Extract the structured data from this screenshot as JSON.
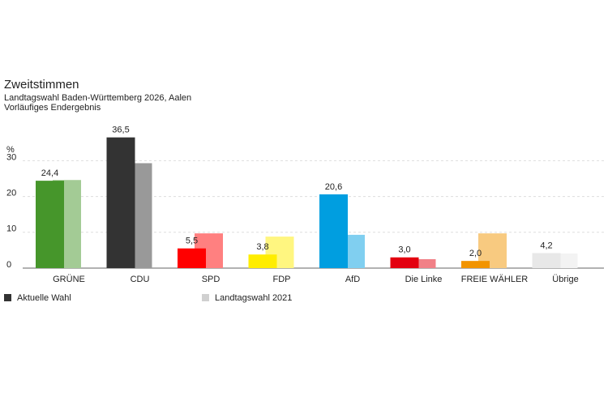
{
  "chart_data": {
    "type": "bar",
    "title": "Zweitstimmen",
    "subtitle": [
      "Landtagswahl Baden-Württemberg 2026, Aalen",
      "Vorläufiges Endergebnis"
    ],
    "y_label": "%",
    "categories": [
      "GRÜNE",
      "CDU",
      "SPD",
      "FDP",
      "AfD",
      "Die Linke",
      "FREIE WÄHLER",
      "Übrige"
    ],
    "series": [
      {
        "name": "Aktuelle Wahl",
        "color": "#333333",
        "colors": [
          "#46962b",
          "#333333",
          "#ff0000",
          "#ffed00",
          "#009ee0",
          "#e3000f",
          "#f29400",
          "#e8e8e8"
        ],
        "values": [
          24.4,
          36.5,
          5.5,
          3.8,
          20.6,
          3.0,
          2.0,
          4.2
        ],
        "value_labels": [
          "24,4",
          "36,5",
          "5,5",
          "3,8",
          "20,6",
          "3,0",
          "2,0",
          "4,2"
        ]
      },
      {
        "name": "Landtagswahl 2021",
        "color": "#d0d0d0",
        "colors": [
          "#a3cb95",
          "#999999",
          "#ff8080",
          "#fff680",
          "#80cff0",
          "#f18087",
          "#f8ca80",
          "#f3f3f3"
        ],
        "values": [
          24.6,
          29.3,
          9.7,
          8.8,
          9.3,
          2.5,
          9.7,
          4.1
        ]
      }
    ],
    "ylim": [
      0,
      38
    ],
    "yticks": [
      0,
      10,
      20,
      30
    ],
    "grid": true
  }
}
